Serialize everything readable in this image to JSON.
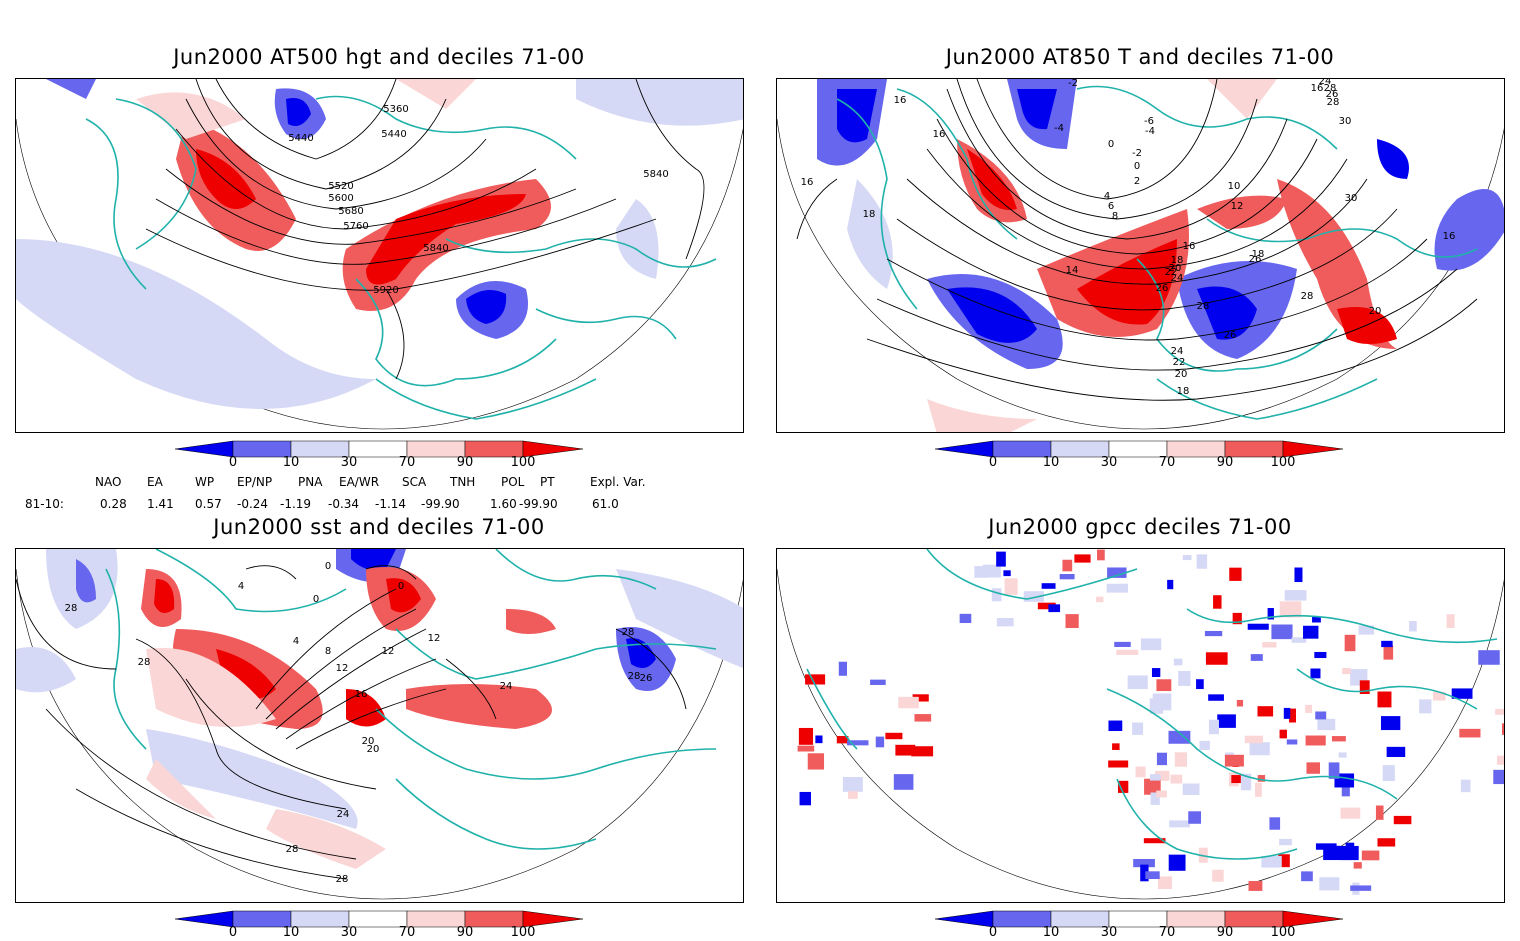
{
  "panels": [
    {
      "title": "Jun2000 AT500 hgt and deciles 71-00"
    },
    {
      "title": "Jun2000 AT850 T and deciles 71-00"
    },
    {
      "title": "Jun2000 sst and deciles 71-00"
    },
    {
      "title": "Jun2000 gpcc deciles 71-00"
    }
  ],
  "colorbar": {
    "labels": [
      "0",
      "10",
      "30",
      "70",
      "90",
      "100"
    ],
    "colors": [
      "#0000ee",
      "#6666ee",
      "#d6d9f6",
      "#ffffff",
      "#fbd6d6",
      "#f05c5c",
      "#ee0000"
    ]
  },
  "indices": {
    "headers": [
      "NAO",
      "EA",
      "WP",
      "EP/NP",
      "PNA",
      "EA/WR",
      "SCA",
      "TNH",
      "POL",
      "PT",
      "Expl. Var."
    ],
    "row_label": "81-10:",
    "values": [
      "0.28",
      "1.41",
      "0.57",
      "-0.24",
      "-1.19",
      "-0.34",
      "-1.14",
      "-99.90",
      "1.60",
      "-99.90",
      "61.0"
    ]
  },
  "contour_labels": {
    "p1": [
      "5360",
      "5440",
      "5440",
      "5520",
      "5600",
      "5680",
      "5760",
      "5840",
      "5920",
      "5840"
    ],
    "p2": [
      "16",
      "16",
      "18",
      "16",
      "-2",
      "-4",
      "-6",
      "-4",
      "0",
      "-2",
      "0",
      "2",
      "4",
      "6",
      "8",
      "10",
      "12",
      "14",
      "16",
      "18",
      "20",
      "22",
      "24",
      "26",
      "28",
      "26",
      "24",
      "22",
      "20",
      "18",
      "16",
      "18",
      "26",
      "28",
      "30",
      "30",
      "28",
      "20",
      "16",
      "24",
      "26",
      "28"
    ],
    "p3": [
      "28",
      "28",
      "4",
      "0",
      "0",
      "0",
      "4",
      "8",
      "12",
      "16",
      "20",
      "20",
      "24",
      "28",
      "28",
      "12",
      "12",
      "24",
      "28",
      "28",
      "26"
    ]
  }
}
